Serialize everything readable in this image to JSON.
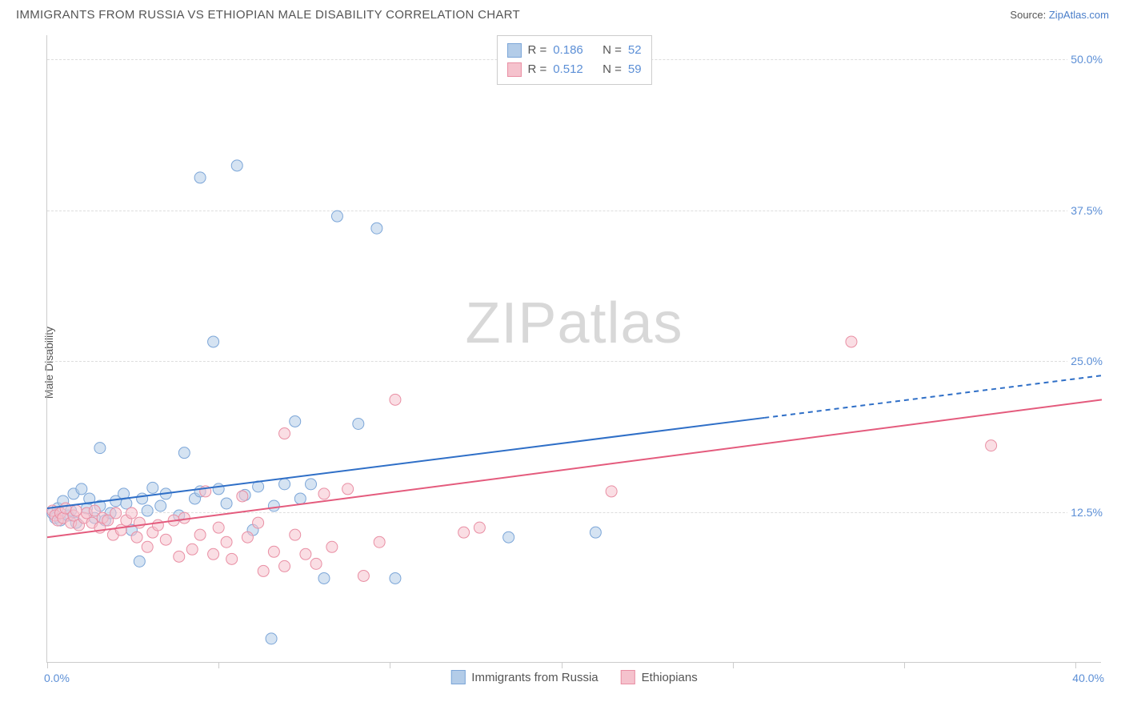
{
  "title": "IMMIGRANTS FROM RUSSIA VS ETHIOPIAN MALE DISABILITY CORRELATION CHART",
  "source_label": "Source:",
  "source_name": "ZipAtlas.com",
  "watermark_a": "ZIP",
  "watermark_b": "atlas",
  "ylabel": "Male Disability",
  "chart": {
    "type": "scatter",
    "xlim": [
      0,
      40
    ],
    "ylim": [
      0,
      52
    ],
    "x_tick_positions": [
      0,
      6.5,
      13,
      19.5,
      26,
      32.5,
      39
    ],
    "x_min_label": "0.0%",
    "x_max_label": "40.0%",
    "y_gridlines": [
      12.5,
      25.0,
      37.5,
      50.0
    ],
    "y_tick_labels": [
      "12.5%",
      "25.0%",
      "37.5%",
      "50.0%"
    ],
    "background_color": "#ffffff",
    "grid_color": "#dddddd",
    "axis_color": "#cccccc",
    "tick_label_color": "#5c8fd6",
    "series": [
      {
        "name": "Immigrants from Russia",
        "color_fill": "#b3cce8",
        "color_stroke": "#7ca6d8",
        "marker_radius": 7,
        "fill_opacity": 0.55,
        "r_label": "R =",
        "r_value": "0.186",
        "n_label": "N =",
        "n_value": "52",
        "trend": {
          "x1": 0,
          "y1": 12.8,
          "x2": 27.2,
          "y2": 20.3,
          "x2_dash": 40,
          "y2_dash": 23.8,
          "stroke": "#2f6fc7",
          "stroke_width": 2
        },
        "points": [
          [
            0.2,
            12.4
          ],
          [
            0.3,
            12.0
          ],
          [
            0.4,
            12.8
          ],
          [
            0.5,
            11.8
          ],
          [
            0.6,
            13.4
          ],
          [
            0.8,
            12.2
          ],
          [
            0.9,
            12.6
          ],
          [
            1.0,
            14.0
          ],
          [
            1.1,
            11.6
          ],
          [
            1.3,
            14.4
          ],
          [
            1.5,
            12.8
          ],
          [
            1.6,
            13.6
          ],
          [
            1.8,
            12.0
          ],
          [
            2.0,
            13.0
          ],
          [
            2.0,
            17.8
          ],
          [
            2.2,
            11.8
          ],
          [
            2.4,
            12.4
          ],
          [
            2.6,
            13.4
          ],
          [
            2.9,
            14.0
          ],
          [
            3.0,
            13.2
          ],
          [
            3.2,
            11.0
          ],
          [
            3.5,
            8.4
          ],
          [
            3.6,
            13.6
          ],
          [
            3.8,
            12.6
          ],
          [
            4.0,
            14.5
          ],
          [
            4.3,
            13.0
          ],
          [
            4.5,
            14.0
          ],
          [
            5.0,
            12.2
          ],
          [
            5.2,
            17.4
          ],
          [
            5.6,
            13.6
          ],
          [
            5.8,
            14.2
          ],
          [
            5.8,
            40.2
          ],
          [
            6.3,
            26.6
          ],
          [
            6.5,
            14.4
          ],
          [
            6.8,
            13.2
          ],
          [
            7.2,
            41.2
          ],
          [
            7.5,
            13.9
          ],
          [
            7.8,
            11.0
          ],
          [
            8.0,
            14.6
          ],
          [
            8.5,
            2.0
          ],
          [
            8.6,
            13.0
          ],
          [
            9.0,
            14.8
          ],
          [
            9.4,
            20.0
          ],
          [
            9.6,
            13.6
          ],
          [
            10.0,
            14.8
          ],
          [
            10.5,
            7.0
          ],
          [
            11.0,
            37.0
          ],
          [
            11.8,
            19.8
          ],
          [
            12.5,
            36.0
          ],
          [
            13.2,
            7.0
          ],
          [
            17.5,
            10.4
          ],
          [
            20.8,
            10.8
          ]
        ]
      },
      {
        "name": "Ethiopians",
        "color_fill": "#f5c2cd",
        "color_stroke": "#e98fa4",
        "marker_radius": 7,
        "fill_opacity": 0.55,
        "r_label": "R =",
        "r_value": "0.512",
        "n_label": "N =",
        "n_value": "59",
        "trend": {
          "x1": 0,
          "y1": 10.4,
          "x2": 40,
          "y2": 21.8,
          "stroke": "#e45b7d",
          "stroke_width": 2
        },
        "points": [
          [
            0.2,
            12.6
          ],
          [
            0.3,
            12.2
          ],
          [
            0.4,
            11.8
          ],
          [
            0.5,
            12.4
          ],
          [
            0.6,
            12.0
          ],
          [
            0.7,
            12.8
          ],
          [
            0.9,
            11.6
          ],
          [
            1.0,
            12.2
          ],
          [
            1.1,
            12.6
          ],
          [
            1.2,
            11.4
          ],
          [
            1.4,
            12.0
          ],
          [
            1.5,
            12.4
          ],
          [
            1.7,
            11.6
          ],
          [
            1.8,
            12.6
          ],
          [
            2.0,
            11.2
          ],
          [
            2.1,
            12.0
          ],
          [
            2.3,
            11.8
          ],
          [
            2.5,
            10.6
          ],
          [
            2.6,
            12.4
          ],
          [
            2.8,
            11.0
          ],
          [
            3.0,
            11.8
          ],
          [
            3.2,
            12.4
          ],
          [
            3.4,
            10.4
          ],
          [
            3.5,
            11.6
          ],
          [
            3.8,
            9.6
          ],
          [
            4.0,
            10.8
          ],
          [
            4.2,
            11.4
          ],
          [
            4.5,
            10.2
          ],
          [
            4.8,
            11.8
          ],
          [
            5.0,
            8.8
          ],
          [
            5.2,
            12.0
          ],
          [
            5.5,
            9.4
          ],
          [
            5.8,
            10.6
          ],
          [
            6.0,
            14.2
          ],
          [
            6.3,
            9.0
          ],
          [
            6.5,
            11.2
          ],
          [
            6.8,
            10.0
          ],
          [
            7.0,
            8.6
          ],
          [
            7.4,
            13.8
          ],
          [
            7.6,
            10.4
          ],
          [
            8.0,
            11.6
          ],
          [
            8.2,
            7.6
          ],
          [
            8.6,
            9.2
          ],
          [
            9.0,
            8.0
          ],
          [
            9.0,
            19.0
          ],
          [
            9.4,
            10.6
          ],
          [
            9.8,
            9.0
          ],
          [
            10.2,
            8.2
          ],
          [
            10.5,
            14.0
          ],
          [
            10.8,
            9.6
          ],
          [
            11.4,
            14.4
          ],
          [
            12.0,
            7.2
          ],
          [
            12.6,
            10.0
          ],
          [
            13.2,
            21.8
          ],
          [
            15.8,
            10.8
          ],
          [
            16.4,
            11.2
          ],
          [
            21.4,
            14.2
          ],
          [
            30.5,
            26.6
          ],
          [
            35.8,
            18.0
          ]
        ]
      }
    ],
    "legend": {
      "series1_label": "Immigrants from Russia",
      "series2_label": "Ethiopians"
    }
  }
}
